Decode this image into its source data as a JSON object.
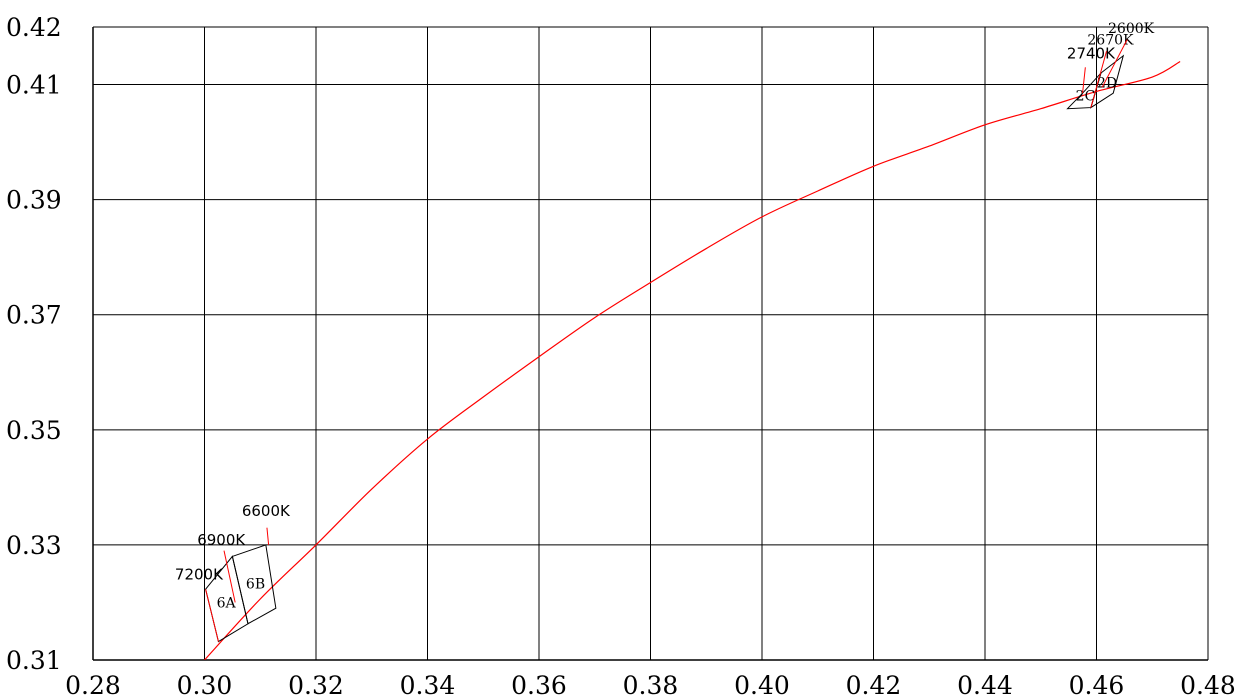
{
  "chart_data": {
    "type": "line",
    "title": "",
    "xlabel": "",
    "ylabel": "",
    "xlim": [
      0.28,
      0.48
    ],
    "ylim": [
      0.31,
      0.42
    ],
    "x_ticks": [
      "0.28",
      "0.30",
      "0.32",
      "0.34",
      "0.36",
      "0.38",
      "0.40",
      "0.42",
      "0.44",
      "0.46",
      "0.48"
    ],
    "x_tick_values": [
      0.28,
      0.3,
      0.32,
      0.34,
      0.36,
      0.38,
      0.4,
      0.42,
      0.44,
      0.46,
      0.48
    ],
    "y_ticks": [
      "0.42",
      "0.41",
      "0.39",
      "0.37",
      "0.35",
      "0.33",
      "0.31"
    ],
    "y_tick_values": [
      0.42,
      0.41,
      0.39,
      0.37,
      0.35,
      0.33,
      0.31
    ],
    "grid": true,
    "series": [
      {
        "color": "#ff0000",
        "x": [
          0.3,
          0.31,
          0.32,
          0.33,
          0.34,
          0.35,
          0.36,
          0.37,
          0.38,
          0.39,
          0.4,
          0.41,
          0.42,
          0.43,
          0.44,
          0.45,
          0.46,
          0.47,
          0.475
        ],
        "y": [
          0.31,
          0.3206,
          0.33,
          0.3397,
          0.3484,
          0.3557,
          0.3627,
          0.3695,
          0.3756,
          0.3815,
          0.387,
          0.3915,
          0.3958,
          0.3993,
          0.403,
          0.4058,
          0.4088,
          0.4113,
          0.414
        ]
      }
    ],
    "bins": [
      {
        "label": "6A",
        "polygon": [
          [
            0.3002,
            0.3223
          ],
          [
            0.305,
            0.328
          ],
          [
            0.3078,
            0.3163
          ],
          [
            0.3025,
            0.3132
          ]
        ]
      },
      {
        "label": "6B",
        "polygon": [
          [
            0.305,
            0.328
          ],
          [
            0.311,
            0.33
          ],
          [
            0.3128,
            0.319
          ],
          [
            0.3078,
            0.3163
          ]
        ]
      },
      {
        "label": "2C",
        "polygon": [
          [
            0.4548,
            0.4058
          ],
          [
            0.4575,
            0.4085
          ],
          [
            0.4608,
            0.412
          ],
          [
            0.459,
            0.406
          ]
        ]
      },
      {
        "label": "2D",
        "polygon": [
          [
            0.459,
            0.406
          ],
          [
            0.4608,
            0.412
          ],
          [
            0.4648,
            0.415
          ],
          [
            0.463,
            0.4085
          ]
        ]
      }
    ],
    "annotations": [
      {
        "text": "7200K",
        "x": 0.299,
        "y": 0.324
      },
      {
        "text": "6900K",
        "x": 0.303,
        "y": 0.33
      },
      {
        "text": "6600K",
        "x": 0.311,
        "y": 0.335
      },
      {
        "text": "2740K",
        "x": 0.459,
        "y": 0.4145
      },
      {
        "text": "2670K",
        "x": 0.4625,
        "y": 0.417
      },
      {
        "text": "2600K",
        "x": 0.4662,
        "y": 0.419
      }
    ]
  }
}
